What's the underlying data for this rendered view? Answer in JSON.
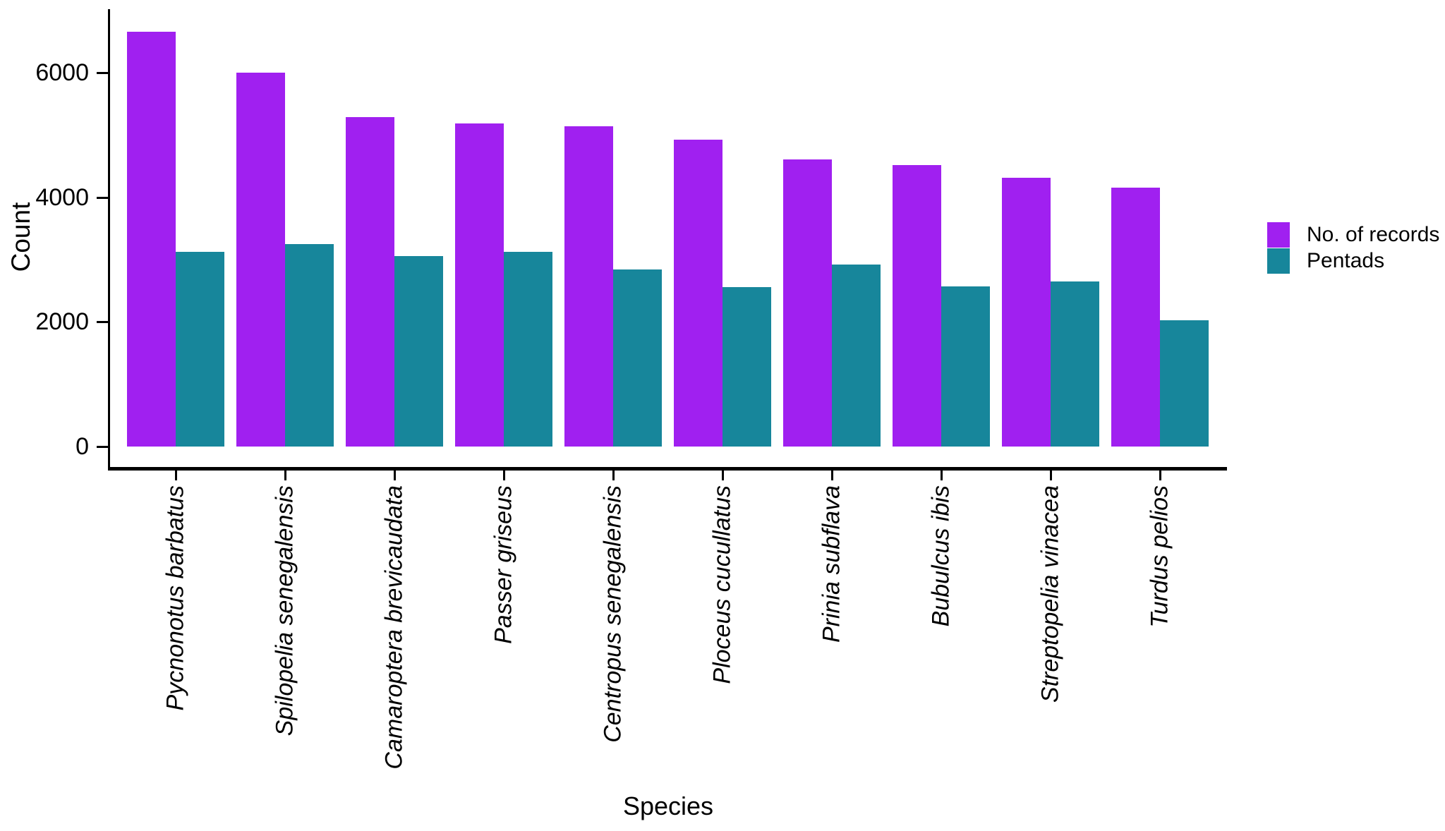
{
  "figure": {
    "background": "#FFFFFF",
    "text_color": "#000000",
    "axis_color": "#000000"
  },
  "chart_data": {
    "type": "bar",
    "bar_style": "grouped",
    "title": "",
    "xlabel": "Species",
    "ylabel": "Count",
    "categories": [
      "Pycnonotus barbatus",
      "Spilopelia senegalensis",
      "Camaroptera brevicaudata",
      "Passer griseus",
      "Centropus senegalensis",
      "Ploceus cucullatus",
      "Prinia subflava",
      "Bubulcus ibis",
      "Streptopelia vinacea",
      "Turdus pelios"
    ],
    "series": [
      {
        "name": "No. of records",
        "color": "#A020F0",
        "values": [
          6650,
          6000,
          5280,
          5180,
          5140,
          4920,
          4600,
          4520,
          4310,
          4150
        ]
      },
      {
        "name": "Pentads",
        "color": "#17869B",
        "values": [
          3120,
          3250,
          3060,
          3120,
          2840,
          2560,
          2920,
          2570,
          2650,
          2030
        ]
      }
    ],
    "yticks": [
      0,
      2000,
      4000,
      6000
    ],
    "ylim": [
      0,
      7000
    ],
    "grid": false,
    "legend_position": "right",
    "category_labels_rotated_90_italic": true
  }
}
